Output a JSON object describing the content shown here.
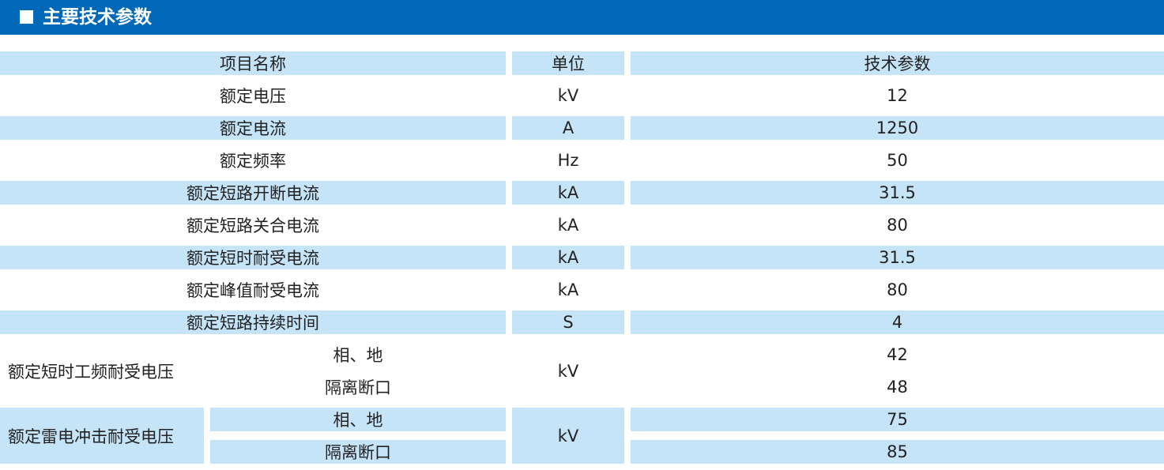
{
  "header": {
    "title": "主要技术参数"
  },
  "table": {
    "columns": [
      "项目名称",
      "单位",
      "技术参数"
    ],
    "rows": [
      [
        "额定电压",
        "kV",
        12
      ],
      [
        "额定电流",
        "A",
        1250
      ],
      [
        "额定频率",
        "Hz",
        50
      ],
      [
        "额定短路开断电流",
        "kA",
        31.5
      ],
      [
        "额定短路关合电流",
        "kA",
        80
      ],
      [
        "额定短时耐受电流",
        "kA",
        31.5
      ],
      [
        "额定峰值耐受电流",
        "kA",
        80
      ],
      [
        "额定短路持续时间",
        "S",
        4
      ]
    ],
    "groups": [
      {
        "label": "额定短时工频耐受电压",
        "unit": "kV",
        "items": [
          {
            "label": "相、地",
            "value": 42
          },
          {
            "label": "隔离断口",
            "value": 48
          }
        ]
      },
      {
        "label": "额定雷电冲击耐受电压",
        "unit": "kV",
        "items": [
          {
            "label": "相、地",
            "value": 75
          },
          {
            "label": "隔离断口",
            "value": 85
          }
        ]
      }
    ]
  }
}
